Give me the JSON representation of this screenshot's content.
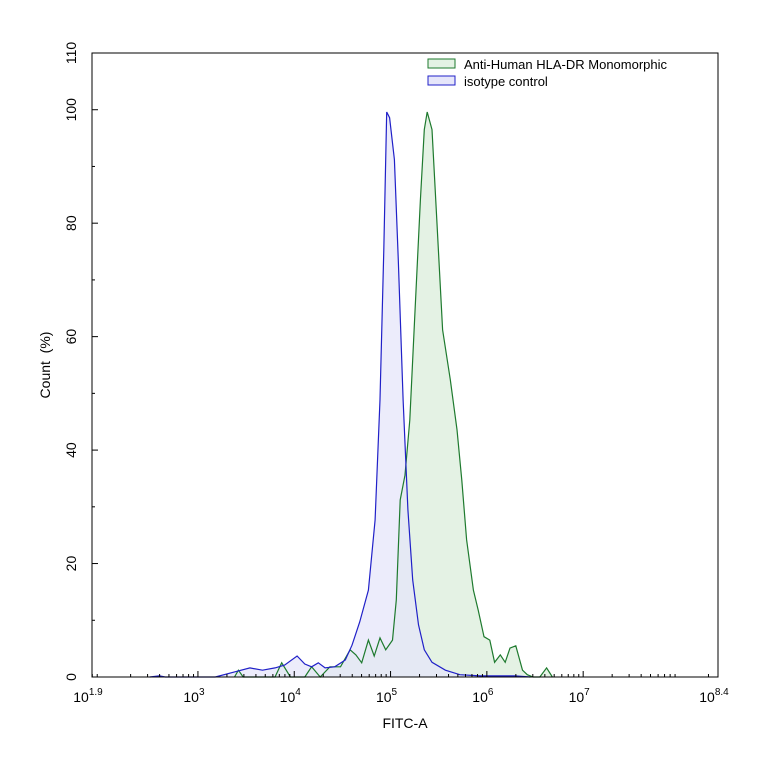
{
  "chart_data": {
    "type": "area",
    "title": "",
    "xlabel": "FITC-A",
    "ylabel": "Count  (%)",
    "xscale": "log10",
    "xlim_log10": [
      1.9,
      8.4
    ],
    "ylim": [
      0,
      110
    ],
    "x_tick_labels": [
      {
        "base": "10",
        "exp": "1.9",
        "log": 1.9
      },
      {
        "base": "10",
        "exp": "3",
        "log": 3
      },
      {
        "base": "10",
        "exp": "4",
        "log": 4
      },
      {
        "base": "10",
        "exp": "5",
        "log": 5
      },
      {
        "base": "10",
        "exp": "6",
        "log": 6
      },
      {
        "base": "10",
        "exp": "7",
        "log": 7
      },
      {
        "base": "10",
        "exp": "8.4",
        "log": 8.4
      }
    ],
    "y_ticks": [
      "0",
      "20",
      "40",
      "60",
      "80",
      "100",
      "110"
    ],
    "legend_position": "top-right",
    "series": [
      {
        "name": "Anti-Human HLA-DR Monomorphic",
        "stroke": "#1e7a2e",
        "fill": "#e4f2e4",
        "points_log10x_count": [
          [
            3.38,
            0
          ],
          [
            3.42,
            1.2
          ],
          [
            3.47,
            0
          ],
          [
            3.8,
            0
          ],
          [
            3.87,
            2.5
          ],
          [
            3.96,
            0
          ],
          [
            4.11,
            0
          ],
          [
            4.18,
            1.8
          ],
          [
            4.27,
            0
          ],
          [
            4.37,
            1.8
          ],
          [
            4.48,
            1.8
          ],
          [
            4.58,
            4.8
          ],
          [
            4.64,
            3.9
          ],
          [
            4.7,
            2.5
          ],
          [
            4.77,
            6.5
          ],
          [
            4.83,
            3.7
          ],
          [
            4.89,
            6.9
          ],
          [
            4.95,
            4.8
          ],
          [
            5.02,
            6.5
          ],
          [
            5.06,
            13.6
          ],
          [
            5.1,
            31.2
          ],
          [
            5.15,
            35.6
          ],
          [
            5.2,
            45.3
          ],
          [
            5.25,
            63.0
          ],
          [
            5.31,
            84.1
          ],
          [
            5.35,
            96.5
          ],
          [
            5.38,
            99.6
          ],
          [
            5.43,
            96.5
          ],
          [
            5.48,
            80.6
          ],
          [
            5.54,
            61.2
          ],
          [
            5.62,
            52.4
          ],
          [
            5.69,
            43.6
          ],
          [
            5.74,
            34.7
          ],
          [
            5.79,
            24.2
          ],
          [
            5.86,
            15.3
          ],
          [
            5.91,
            11.8
          ],
          [
            5.97,
            7.1
          ],
          [
            6.03,
            6.5
          ],
          [
            6.08,
            2.6
          ],
          [
            6.14,
            3.9
          ],
          [
            6.19,
            2.6
          ],
          [
            6.24,
            5.1
          ],
          [
            6.3,
            5.5
          ],
          [
            6.37,
            1.2
          ],
          [
            6.42,
            0.4
          ],
          [
            6.48,
            0
          ],
          [
            6.55,
            0
          ],
          [
            6.62,
            1.6
          ],
          [
            6.68,
            0
          ]
        ]
      },
      {
        "name": "isotype control",
        "stroke": "#2020c8",
        "fill": "#e6e6fa",
        "points_log10x_count": [
          [
            2.5,
            0
          ],
          [
            2.6,
            0.2
          ],
          [
            2.66,
            0
          ],
          [
            3.18,
            0
          ],
          [
            3.38,
            0.9
          ],
          [
            3.54,
            1.6
          ],
          [
            3.67,
            1.2
          ],
          [
            3.8,
            1.6
          ],
          [
            3.9,
            2.1
          ],
          [
            4.03,
            3.7
          ],
          [
            4.11,
            2.3
          ],
          [
            4.18,
            1.8
          ],
          [
            4.25,
            2.5
          ],
          [
            4.32,
            1.6
          ],
          [
            4.42,
            1.8
          ],
          [
            4.53,
            3.0
          ],
          [
            4.6,
            5.6
          ],
          [
            4.68,
            9.7
          ],
          [
            4.77,
            15.3
          ],
          [
            4.84,
            27.7
          ],
          [
            4.89,
            48.9
          ],
          [
            4.93,
            75.3
          ],
          [
            4.96,
            99.6
          ],
          [
            4.99,
            98.6
          ],
          [
            5.04,
            91.2
          ],
          [
            5.08,
            73.5
          ],
          [
            5.13,
            48.9
          ],
          [
            5.18,
            29.5
          ],
          [
            5.23,
            17.1
          ],
          [
            5.29,
            9.2
          ],
          [
            5.35,
            4.8
          ],
          [
            5.43,
            2.6
          ],
          [
            5.57,
            1.2
          ],
          [
            5.72,
            0.4
          ],
          [
            5.93,
            0.2
          ],
          [
            6.29,
            0.2
          ],
          [
            6.45,
            0
          ]
        ]
      }
    ]
  }
}
